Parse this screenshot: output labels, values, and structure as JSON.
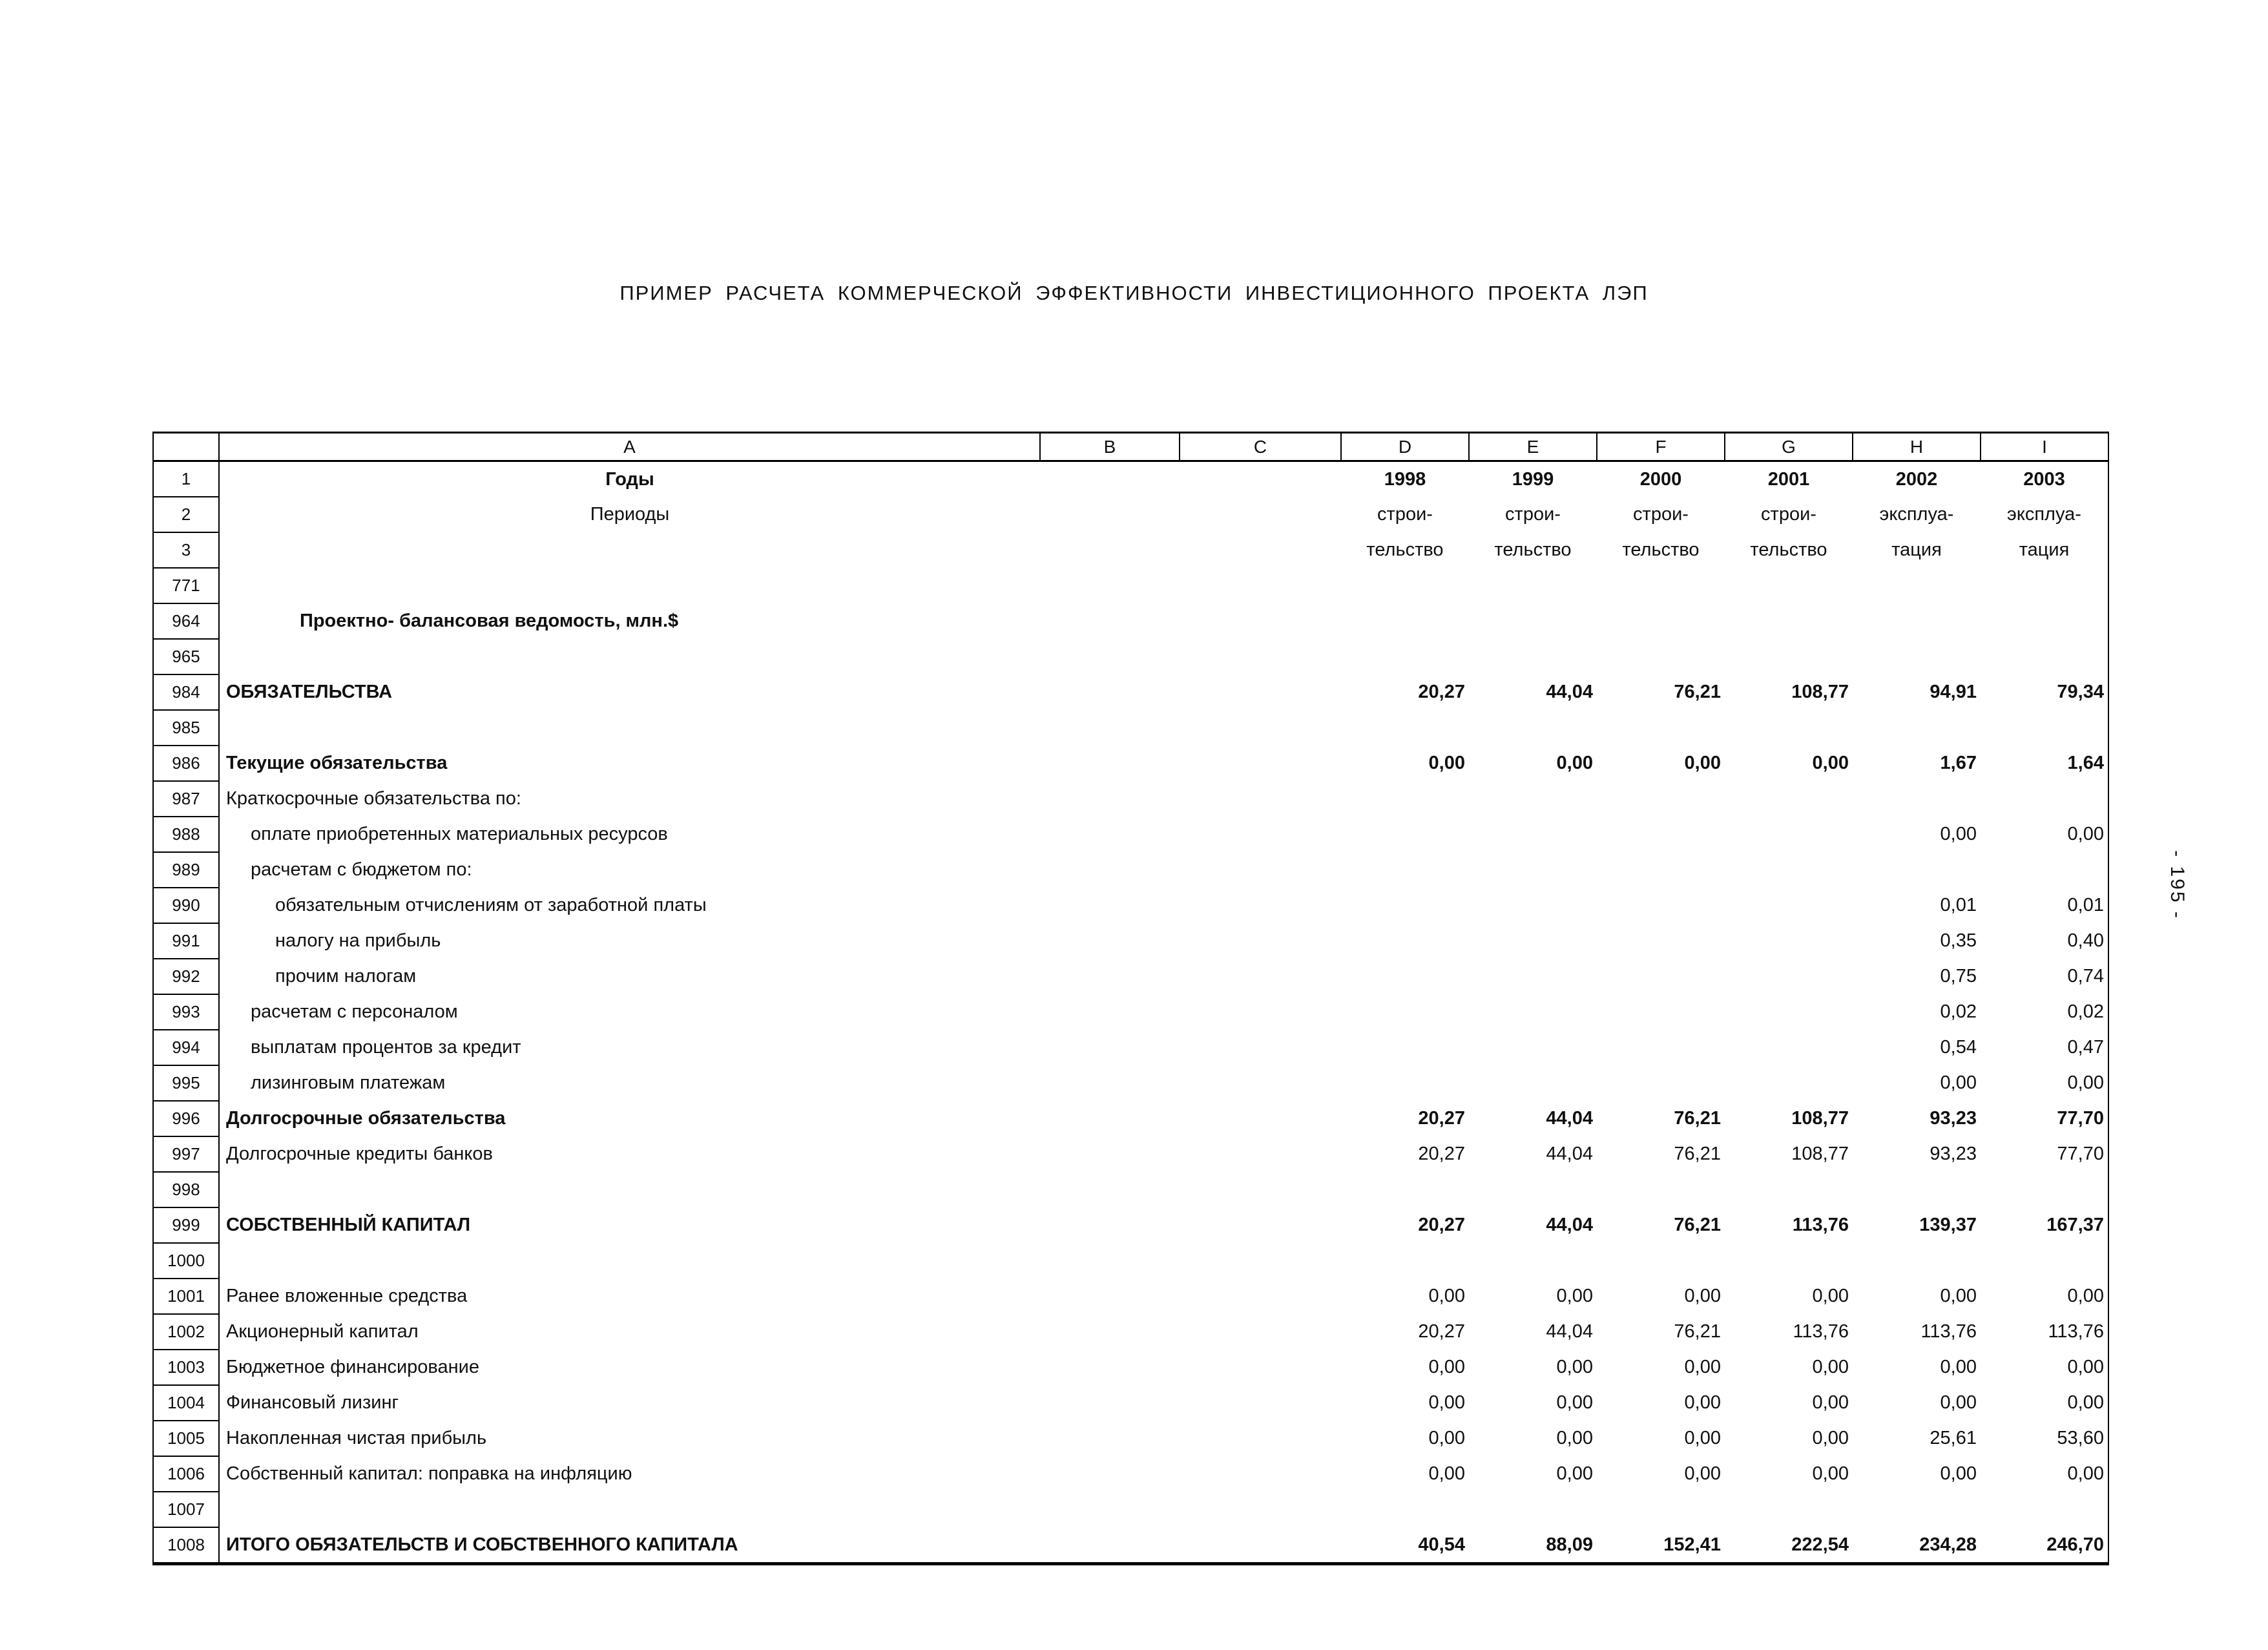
{
  "page": {
    "title": "ПРИМЕР РАСЧЕТА КОММЕРЧЕСКОЙ ЭФФЕКТИВНОСТИ ИНВЕСТИЦИОННОГО ПРОЕКТА ЛЭП",
    "page_number": "- 195 -",
    "colors": {
      "ink": "#000000",
      "paper": "#ffffff"
    }
  },
  "table": {
    "column_letters": [
      "A",
      "B",
      "C",
      "D",
      "E",
      "F",
      "G",
      "H",
      "I"
    ],
    "rows": [
      {
        "num": "1",
        "label": "Годы",
        "bold": true,
        "align": "center",
        "values": [
          "1998",
          "1999",
          "2000",
          "2001",
          "2002",
          "2003"
        ],
        "vbold": true,
        "valign": "center"
      },
      {
        "num": "2",
        "label": "Периоды",
        "align": "center",
        "values": [
          "строи-",
          "строи-",
          "строи-",
          "строи-",
          "эксплуа-",
          "эксплуа-"
        ],
        "valign": "center"
      },
      {
        "num": "3",
        "label": "",
        "values": [
          "тельство",
          "тельство",
          "тельство",
          "тельство",
          "тация",
          "тация"
        ],
        "valign": "center"
      },
      {
        "num": "771",
        "label": ""
      },
      {
        "num": "964",
        "label": "Проектно- балансовая ведомость, млн.$",
        "bold": true,
        "indent": 3
      },
      {
        "num": "965",
        "label": ""
      },
      {
        "num": "984",
        "label": "ОБЯЗАТЕЛЬСТВА",
        "bold": true,
        "values": [
          "20,27",
          "44,04",
          "76,21",
          "108,77",
          "94,91",
          "79,34"
        ],
        "vbold": true
      },
      {
        "num": "985",
        "label": ""
      },
      {
        "num": "986",
        "label": "Текущие обязательства",
        "bold": true,
        "values": [
          "0,00",
          "0,00",
          "0,00",
          "0,00",
          "1,67",
          "1,64"
        ],
        "vbold": true
      },
      {
        "num": "987",
        "label": "Краткосрочные обязательства по:"
      },
      {
        "num": "988",
        "label": "оплате приобретенных материальных ресурсов",
        "indent": 1,
        "values": [
          "",
          "",
          "",
          "",
          "0,00",
          "0,00"
        ]
      },
      {
        "num": "989",
        "label": "расчетам с бюджетом по:",
        "indent": 1
      },
      {
        "num": "990",
        "label": "обязательным отчислениям от заработной платы",
        "indent": 2,
        "values": [
          "",
          "",
          "",
          "",
          "0,01",
          "0,01"
        ]
      },
      {
        "num": "991",
        "label": "налогу на прибыль",
        "indent": 2,
        "values": [
          "",
          "",
          "",
          "",
          "0,35",
          "0,40"
        ]
      },
      {
        "num": "992",
        "label": "прочим налогам",
        "indent": 2,
        "values": [
          "",
          "",
          "",
          "",
          "0,75",
          "0,74"
        ]
      },
      {
        "num": "993",
        "label": "расчетам с персоналом",
        "indent": 1,
        "values": [
          "",
          "",
          "",
          "",
          "0,02",
          "0,02"
        ]
      },
      {
        "num": "994",
        "label": "выплатам процентов за кредит",
        "indent": 1,
        "values": [
          "",
          "",
          "",
          "",
          "0,54",
          "0,47"
        ]
      },
      {
        "num": "995",
        "label": "лизинговым платежам",
        "indent": 1,
        "values": [
          "",
          "",
          "",
          "",
          "0,00",
          "0,00"
        ]
      },
      {
        "num": "996",
        "label": "Долгосрочные обязательства",
        "bold": true,
        "values": [
          "20,27",
          "44,04",
          "76,21",
          "108,77",
          "93,23",
          "77,70"
        ],
        "vbold": true
      },
      {
        "num": "997",
        "label": "Долгосрочные кредиты банков",
        "values": [
          "20,27",
          "44,04",
          "76,21",
          "108,77",
          "93,23",
          "77,70"
        ]
      },
      {
        "num": "998",
        "label": ""
      },
      {
        "num": "999",
        "label": "СОБСТВЕННЫЙ КАПИТАЛ",
        "bold": true,
        "values": [
          "20,27",
          "44,04",
          "76,21",
          "113,76",
          "139,37",
          "167,37"
        ],
        "vbold": true
      },
      {
        "num": "1000",
        "label": ""
      },
      {
        "num": "1001",
        "label": "Ранее вложенные средства",
        "values": [
          "0,00",
          "0,00",
          "0,00",
          "0,00",
          "0,00",
          "0,00"
        ]
      },
      {
        "num": "1002",
        "label": "Акционерный капитал",
        "values": [
          "20,27",
          "44,04",
          "76,21",
          "113,76",
          "113,76",
          "113,76"
        ]
      },
      {
        "num": "1003",
        "label": "Бюджетное финансирование",
        "values": [
          "0,00",
          "0,00",
          "0,00",
          "0,00",
          "0,00",
          "0,00"
        ]
      },
      {
        "num": "1004",
        "label": "Финансовый лизинг",
        "values": [
          "0,00",
          "0,00",
          "0,00",
          "0,00",
          "0,00",
          "0,00"
        ]
      },
      {
        "num": "1005",
        "label": "Накопленная чистая прибыль",
        "values": [
          "0,00",
          "0,00",
          "0,00",
          "0,00",
          "25,61",
          "53,60"
        ]
      },
      {
        "num": "1006",
        "label": "Собственный капитал: поправка на инфляцию",
        "values": [
          "0,00",
          "0,00",
          "0,00",
          "0,00",
          "0,00",
          "0,00"
        ]
      },
      {
        "num": "1007",
        "label": ""
      },
      {
        "num": "1008",
        "label": "ИТОГО ОБЯЗАТЕЛЬСТВ И СОБСТВЕННОГО КАПИТАЛА",
        "bold": true,
        "values": [
          "40,54",
          "88,09",
          "152,41",
          "222,54",
          "234,28",
          "246,70"
        ],
        "vbold": true
      }
    ]
  }
}
